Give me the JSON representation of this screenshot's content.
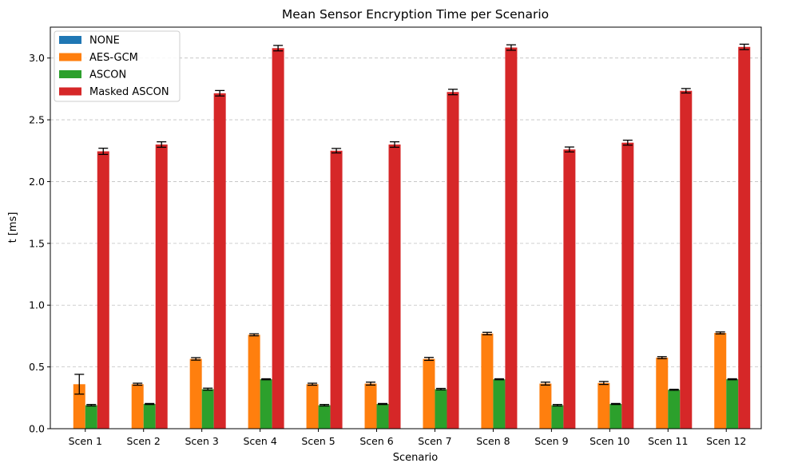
{
  "chart_data": {
    "type": "bar",
    "title": "Mean Sensor Encryption Time per Scenario",
    "xlabel": "Scenario",
    "ylabel": "t [ms]",
    "ylim": [
      0,
      3.25
    ],
    "yticks": [
      "0.0",
      "0.5",
      "1.0",
      "1.5",
      "2.0",
      "2.5",
      "3.0"
    ],
    "ytick_values": [
      0,
      0.5,
      1.0,
      1.5,
      2.0,
      2.5,
      3.0
    ],
    "grid": "y-dashed",
    "legend_position": "top-left",
    "categories": [
      "Scen 1",
      "Scen 2",
      "Scen 3",
      "Scen 4",
      "Scen 5",
      "Scen 6",
      "Scen 7",
      "Scen 8",
      "Scen 9",
      "Scen 10",
      "Scen 11",
      "Scen 12"
    ],
    "series": [
      {
        "name": "NONE",
        "color": "#1f77b4",
        "values": [
          0.002,
          0.002,
          0.002,
          0.002,
          0.002,
          0.002,
          0.002,
          0.002,
          0.002,
          0.002,
          0.002,
          0.002
        ],
        "errors": [
          0,
          0,
          0,
          0,
          0,
          0,
          0,
          0,
          0,
          0,
          0,
          0
        ]
      },
      {
        "name": "AES-GCM",
        "color": "#ff7f0e",
        "values": [
          0.36,
          0.36,
          0.565,
          0.76,
          0.36,
          0.365,
          0.565,
          0.77,
          0.365,
          0.37,
          0.575,
          0.775
        ],
        "errors": [
          0.08,
          0.008,
          0.01,
          0.008,
          0.008,
          0.012,
          0.012,
          0.01,
          0.012,
          0.012,
          0.008,
          0.008
        ]
      },
      {
        "name": "ASCON",
        "color": "#2ca02c",
        "values": [
          0.19,
          0.2,
          0.32,
          0.4,
          0.19,
          0.2,
          0.32,
          0.4,
          0.19,
          0.2,
          0.315,
          0.4
        ],
        "errors": [
          0.006,
          0.004,
          0.008,
          0.004,
          0.006,
          0.004,
          0.006,
          0.004,
          0.006,
          0.004,
          0.004,
          0.004
        ]
      },
      {
        "name": "Masked ASCON",
        "color": "#d62728",
        "values": [
          2.245,
          2.3,
          2.715,
          3.08,
          2.25,
          2.3,
          2.725,
          3.085,
          2.26,
          2.315,
          2.735,
          3.09
        ],
        "errors": [
          0.025,
          0.022,
          0.022,
          0.022,
          0.018,
          0.022,
          0.022,
          0.022,
          0.02,
          0.02,
          0.018,
          0.022
        ]
      }
    ]
  }
}
